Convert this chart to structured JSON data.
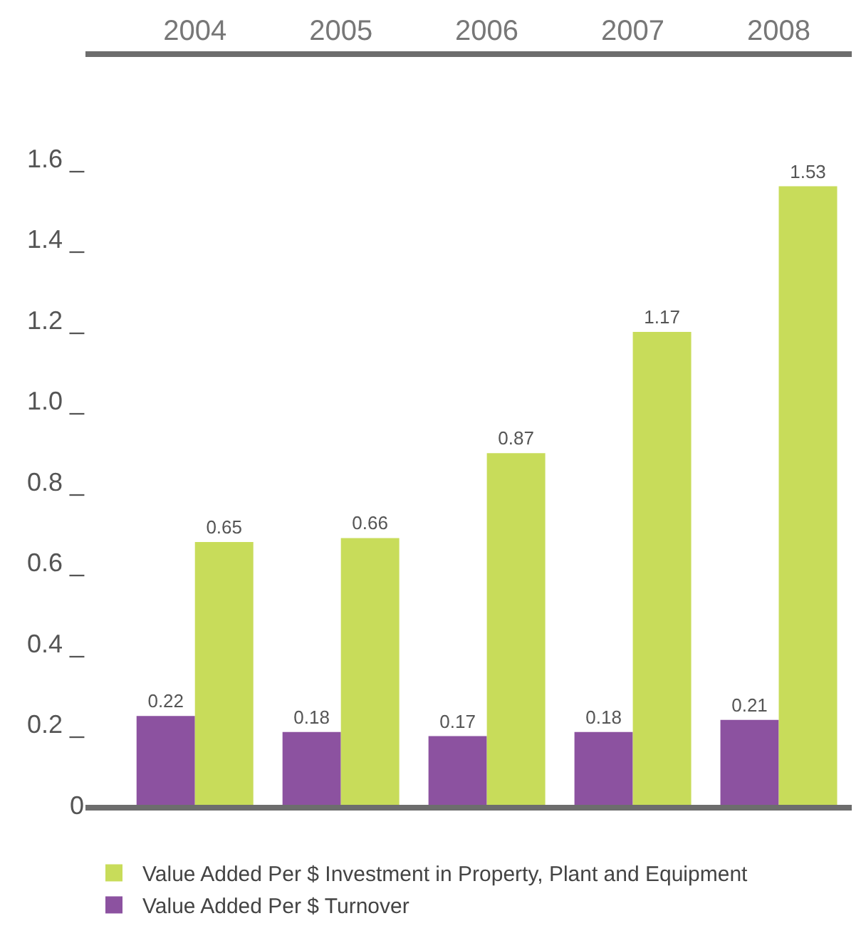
{
  "chart_data": {
    "type": "bar",
    "categories": [
      "2004",
      "2005",
      "2006",
      "2007",
      "2008"
    ],
    "series": [
      {
        "name": "Value Added Per $ Turnover",
        "color": "#8c52a0",
        "values": [
          0.22,
          0.18,
          0.17,
          0.18,
          0.21
        ]
      },
      {
        "name": "Value Added Per $ Investment in Property, Plant and Equipment",
        "color": "#c8dc5a",
        "values": [
          0.65,
          0.66,
          0.87,
          1.17,
          1.53
        ]
      }
    ],
    "ylim": [
      0,
      1.85
    ],
    "yticks": [
      0,
      {
        "value": 0.2,
        "label": "0.2 _"
      },
      {
        "value": 0.4,
        "label": "0.4 _"
      },
      {
        "value": 0.6,
        "label": "0.6 _"
      },
      {
        "value": 0.8,
        "label": "0.8 _"
      },
      {
        "value": 1.0,
        "label": "1.0 _"
      },
      {
        "value": 1.2,
        "label": "1.2 _"
      },
      {
        "value": 1.4,
        "label": "1.4 _"
      },
      {
        "value": 1.6,
        "label": "1.6 _"
      }
    ],
    "data_labels": true,
    "legend": "bottom"
  }
}
